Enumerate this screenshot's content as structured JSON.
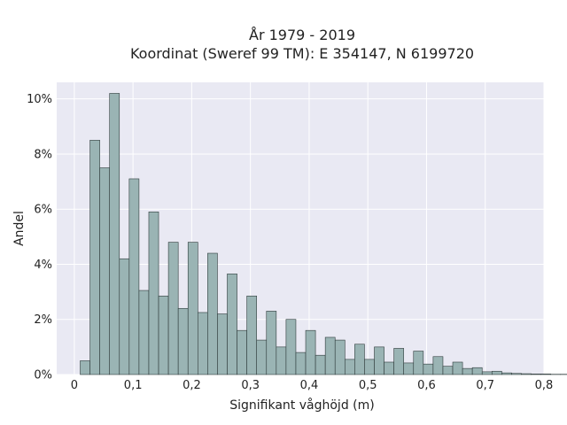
{
  "chart_data": {
    "type": "bar",
    "title_lines": [
      "År 1979 - 2019",
      "Koordinat (Sweref 99 TM): E 354147, N 6199720"
    ],
    "xlabel": "Signifikant våghöjd (m)",
    "ylabel": "Andel",
    "xlim": [
      -0.03,
      0.8
    ],
    "ylim": [
      0,
      10.6
    ],
    "xticks": [
      0,
      0.1,
      0.2,
      0.3,
      0.4,
      0.5,
      0.6,
      0.7,
      0.8
    ],
    "xtick_labels": [
      "0",
      "0,1",
      "0,2",
      "0,3",
      "0,4",
      "0,5",
      "0,6",
      "0,7",
      "0,8"
    ],
    "yticks": [
      0,
      2,
      4,
      6,
      8,
      10
    ],
    "ytick_labels": [
      "0%",
      "2%",
      "4%",
      "6%",
      "8%",
      "10%"
    ],
    "grid": true,
    "bin_start": 0.01,
    "bin_width": 0.0167,
    "values": [
      0.5,
      8.5,
      7.5,
      10.2,
      4.2,
      7.1,
      3.05,
      5.9,
      2.85,
      4.8,
      2.4,
      4.8,
      2.25,
      4.4,
      2.2,
      3.65,
      1.6,
      2.85,
      1.25,
      2.3,
      1.0,
      2.0,
      0.8,
      1.6,
      0.7,
      1.35,
      1.25,
      0.55,
      1.1,
      0.55,
      1.0,
      0.45,
      0.95,
      0.42,
      0.85,
      0.38,
      0.65,
      0.3,
      0.45,
      0.22,
      0.25,
      0.1,
      0.12,
      0.06,
      0.04,
      0.03,
      0.02,
      0.02,
      0.01,
      0.01
    ],
    "colors": {
      "plot_bg": "#e9e9f3",
      "grid": "#ffffff",
      "bar_fill": "#9ab4b4",
      "bar_stroke": "#2f3b3b"
    }
  }
}
